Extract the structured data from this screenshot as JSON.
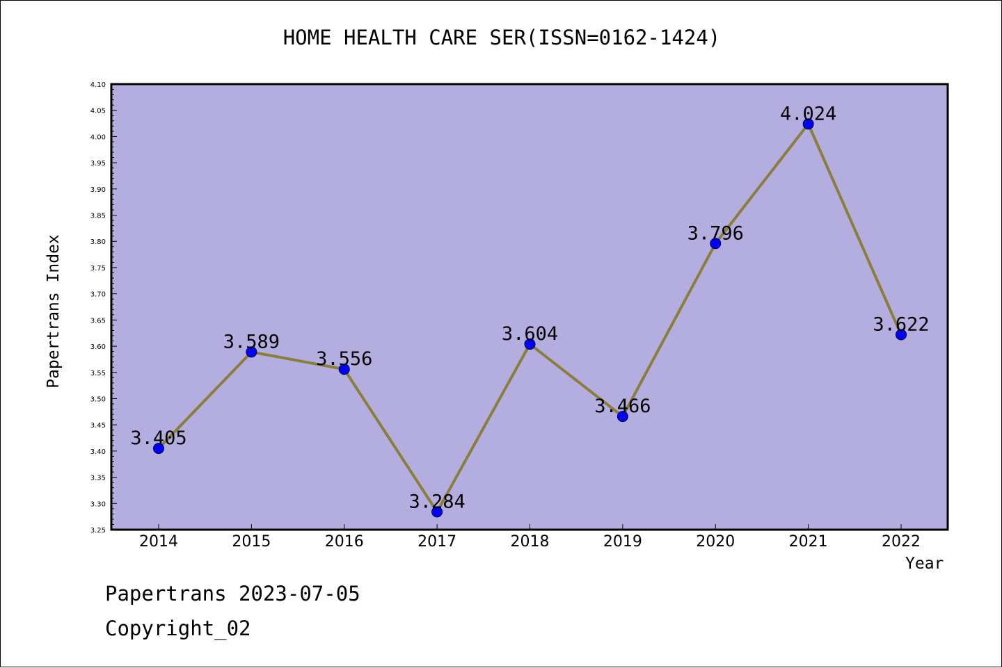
{
  "title": "HOME HEALTH CARE SER(ISSN=0162-1424)",
  "footer": {
    "date_line": "Papertrans 2023-07-05",
    "copyright": "Copyright_02"
  },
  "colors": {
    "plot_background": "#b4aee0",
    "line": "#8b7d3a",
    "marker": "#0000ff"
  },
  "chart_data": {
    "type": "line",
    "title": "HOME HEALTH CARE SER(ISSN=0162-1424)",
    "xlabel": "Year",
    "ylabel": "Papertrans Index",
    "categories": [
      "2014",
      "2015",
      "2016",
      "2017",
      "2018",
      "2019",
      "2020",
      "2021",
      "2022"
    ],
    "values": [
      3.405,
      3.589,
      3.556,
      3.284,
      3.604,
      3.466,
      3.796,
      4.024,
      3.622
    ],
    "data_labels": [
      "3.405",
      "3.589",
      "3.556",
      "3.284",
      "3.604",
      "3.466",
      "3.796",
      "4.024",
      "3.622"
    ],
    "ylim": [
      3.25,
      4.1
    ],
    "yticks": [
      "3.25",
      "3.30",
      "3.35",
      "3.40",
      "3.45",
      "3.50",
      "3.55",
      "3.60",
      "3.65",
      "3.70",
      "3.75",
      "3.80",
      "3.85",
      "3.90",
      "3.95",
      "4.00",
      "4.05",
      "4.10"
    ],
    "grid": false,
    "legend": "none"
  }
}
